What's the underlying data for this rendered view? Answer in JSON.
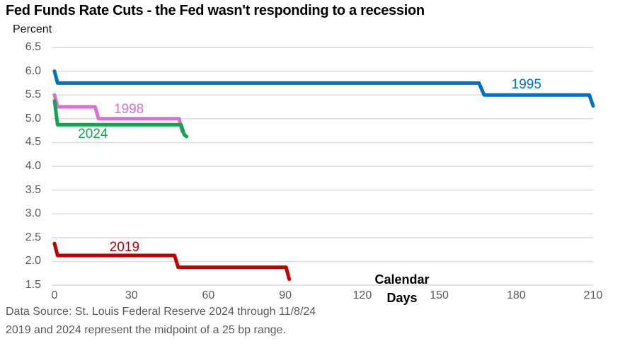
{
  "header": {
    "title": "Fed Funds Rate Cuts - the Fed wasn't responding to a recession"
  },
  "axes": {
    "y_title": "Percent",
    "x_title_line1": "Calendar",
    "x_title_line2": "Days"
  },
  "footer": {
    "line1": "Data Source: St. Louis Federal Reserve 2024 through 11/8/24",
    "line2": "2019 and 2024 represent the midpoint of a 25 bp range."
  },
  "colors": {
    "grid": "#D9D9D9",
    "tick_text": "#595959",
    "footer_text": "#595959",
    "title_text": "#000000"
  },
  "chart_data": {
    "type": "line",
    "title": "Fed Funds Rate Cuts - the Fed wasn't responding to a recession",
    "xlabel": "Calendar Days",
    "ylabel": "Percent",
    "xlim": [
      0,
      212
    ],
    "ylim": [
      1.5,
      6.5
    ],
    "x_ticks": [
      "0",
      "30",
      "60",
      "90",
      "120",
      "150",
      "180",
      "210"
    ],
    "y_ticks": [
      "6.5",
      "6.0",
      "5.5",
      "5.0",
      "4.5",
      "4.0",
      "3.5",
      "3.0",
      "2.5",
      "2.0",
      "1.5"
    ],
    "grid": "horizontal",
    "legend": "inline-labels",
    "series": [
      {
        "name": "1995",
        "color": "#0070C0",
        "points": [
          [
            0,
            6.0
          ],
          [
            1.2,
            5.75
          ],
          [
            165.5,
            5.75
          ],
          [
            167.5,
            5.5
          ],
          [
            208.5,
            5.5
          ],
          [
            210,
            5.27
          ]
        ],
        "label": {
          "day": 184,
          "value": 5.71
        }
      },
      {
        "name": "1998",
        "color": "#DA6FD6",
        "points": [
          [
            0,
            5.5
          ],
          [
            1.2,
            5.25
          ],
          [
            15.8,
            5.25
          ],
          [
            17.2,
            5.0
          ],
          [
            48.6,
            5.0
          ],
          [
            49.8,
            4.73
          ]
        ],
        "label": {
          "day": 29,
          "value": 5.19
        }
      },
      {
        "name": "2024",
        "color": "#0FA64F",
        "points": [
          [
            0,
            5.375
          ],
          [
            1.2,
            4.875
          ],
          [
            49.3,
            4.875
          ],
          [
            50.6,
            4.66
          ],
          [
            51.5,
            4.625
          ]
        ],
        "label": {
          "day": 15,
          "value": 4.67
        }
      },
      {
        "name": "2019",
        "color": "#C00000",
        "points": [
          [
            0,
            2.375
          ],
          [
            1.2,
            2.125
          ],
          [
            46.8,
            2.125
          ],
          [
            48.2,
            1.875
          ],
          [
            90.3,
            1.875
          ],
          [
            91.5,
            1.625
          ]
        ],
        "label": {
          "day": 27.3,
          "value": 2.29
        }
      }
    ]
  }
}
